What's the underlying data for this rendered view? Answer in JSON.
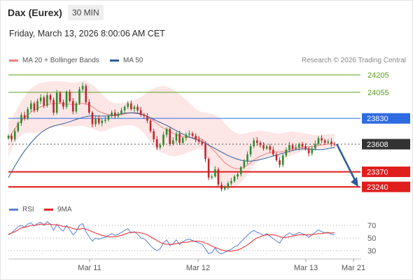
{
  "header": {
    "instrument": "Dax (Eurex)",
    "timeframe": "30 MIN",
    "datetime": "Friday, March 13, 2026 8:00:06 AM CET"
  },
  "legend": {
    "ma20": {
      "label": "MA 20 + Bollinger Bands",
      "color": "#f08080"
    },
    "ma50": {
      "label": "MA 50",
      "color": "#2e5c99"
    },
    "rsi": {
      "label": "RSI",
      "color": "#5b7fd6"
    },
    "rsi_ma": {
      "label": "9MA",
      "color": "#e8262b"
    },
    "credit": "Research © 2026 Trading Central"
  },
  "chart_data": {
    "type": "candlestick",
    "price_axis": {
      "min": 23150,
      "max": 24300
    },
    "levels": [
      {
        "value": 24205,
        "label": "24205",
        "kind": "target",
        "color": "#5aa01e"
      },
      {
        "value": 24055,
        "label": "24055",
        "kind": "target",
        "color": "#5aa01e"
      },
      {
        "value": 23830,
        "label": "23830",
        "kind": "pivot",
        "color": "#2f6be0"
      },
      {
        "value": 23608,
        "label": "23608",
        "kind": "last",
        "color": "#333333"
      },
      {
        "value": 23370,
        "label": "23370",
        "kind": "support",
        "color": "#e01e1e"
      },
      {
        "value": 23240,
        "label": "23240",
        "kind": "support",
        "color": "#e01e1e"
      }
    ],
    "forecast": {
      "from": 23610,
      "to": 23240,
      "color": "#2e5c99"
    },
    "x_labels": [
      "Mar 11",
      "Mar 12",
      "Mar 13",
      "Mar 21"
    ],
    "closes": [
      23680,
      23650,
      23720,
      23790,
      23860,
      23830,
      23910,
      23960,
      23900,
      23980,
      24010,
      23940,
      24030,
      23990,
      23880,
      24050,
      23970,
      23930,
      24060,
      23980,
      23890,
      23960,
      24080,
      24110,
      23970,
      23880,
      23780,
      23830,
      23790,
      23810,
      23820,
      23850,
      23880,
      23850,
      23870,
      23900,
      23930,
      23960,
      23910,
      23930,
      23900,
      23860,
      23850,
      23810,
      23720,
      23650,
      23580,
      23600,
      23690,
      23740,
      23610,
      23640,
      23700,
      23620,
      23660,
      23690,
      23700,
      23680,
      23650,
      23630,
      23610,
      23480,
      23320,
      23330,
      23390,
      23260,
      23220,
      23240,
      23270,
      23290,
      23330,
      23350,
      23410,
      23460,
      23520,
      23590,
      23640,
      23620,
      23600,
      23570,
      23590,
      23560,
      23520,
      23470,
      23430,
      23510,
      23560,
      23600,
      23570,
      23580,
      23610,
      23590,
      23570,
      23530,
      23570,
      23610,
      23660,
      23640,
      23620,
      23630,
      23610,
      23608
    ],
    "ma20": [
      23650,
      23700,
      23740,
      23780,
      23810,
      23835,
      23860,
      23885,
      23900,
      23915,
      23930,
      23940,
      23950,
      23955,
      23958,
      23960,
      23958,
      23955,
      23953,
      23952,
      23950,
      23950,
      23955,
      23960,
      23955,
      23945,
      23930,
      23910,
      23890,
      23880,
      23870,
      23862,
      23858,
      23856,
      23858,
      23862,
      23868,
      23875,
      23880,
      23880,
      23878,
      23872,
      23862,
      23848,
      23830,
      23808,
      23785,
      23765,
      23748,
      23735,
      23715,
      23700,
      23690,
      23680,
      23672,
      23668,
      23665,
      23662,
      23662,
      23660,
      23650,
      23628,
      23600,
      23570,
      23542,
      23508,
      23478,
      23450,
      23428,
      23410,
      23400,
      23395,
      23398,
      23410,
      23428,
      23450,
      23472,
      23490,
      23505,
      23516,
      23528,
      23535,
      23540,
      23542,
      23540,
      23545,
      23552,
      23560,
      23568,
      23572,
      23578,
      23582,
      23585,
      23585,
      23588,
      23592,
      23598,
      23602,
      23605,
      23610,
      23612,
      23612
    ],
    "bb_upper": [
      23800,
      23830,
      23880,
      23930,
      23980,
      24020,
      24060,
      24090,
      24110,
      24125,
      24135,
      24140,
      24145,
      24150,
      24152,
      24152,
      24150,
      24148,
      24145,
      24140,
      24138,
      24138,
      24145,
      24155,
      24150,
      24140,
      24120,
      24095,
      24070,
      24040,
      24010,
      23985,
      23970,
      23962,
      23960,
      23962,
      23968,
      23975,
      23982,
      23990,
      24000,
      24015,
      24035,
      24055,
      24075,
      24090,
      24100,
      24108,
      24110,
      24105,
      24095,
      24080,
      24060,
      24040,
      24015,
      23990,
      23965,
      23940,
      23915,
      23895,
      23885,
      23880,
      23876,
      23870,
      23860,
      23845,
      23820,
      23790,
      23760,
      23730,
      23710,
      23700,
      23695,
      23698,
      23705,
      23712,
      23718,
      23722,
      23725,
      23722,
      23718,
      23712,
      23705,
      23700,
      23700,
      23705,
      23710,
      23715,
      23718,
      23715,
      23710,
      23705,
      23700,
      23695,
      23690,
      23688,
      23688,
      23690,
      23692,
      23695,
      23697,
      23698
    ],
    "bb_lower": [
      23500,
      23560,
      23620,
      23660,
      23690,
      23700,
      23705,
      23710,
      23700,
      23705,
      23715,
      23725,
      23738,
      23745,
      23755,
      23765,
      23765,
      23760,
      23760,
      23760,
      23760,
      23760,
      23765,
      23765,
      23760,
      23750,
      23740,
      23730,
      23720,
      23720,
      23725,
      23735,
      23745,
      23755,
      23760,
      23765,
      23770,
      23770,
      23770,
      23765,
      23750,
      23730,
      23700,
      23665,
      23625,
      23585,
      23560,
      23540,
      23530,
      23520,
      23510,
      23505,
      23505,
      23510,
      23520,
      23530,
      23540,
      23550,
      23560,
      23565,
      23560,
      23515,
      23460,
      23400,
      23340,
      23285,
      23250,
      23235,
      23225,
      23225,
      23235,
      23255,
      23280,
      23310,
      23345,
      23380,
      23420,
      23450,
      23475,
      23490,
      23500,
      23505,
      23505,
      23500,
      23490,
      23490,
      23495,
      23505,
      23515,
      23525,
      23535,
      23545,
      23552,
      23555,
      23560,
      23565,
      23570,
      23572,
      23574,
      23576,
      23578,
      23580
    ],
    "ma50": [
      23320,
      23370,
      23420,
      23465,
      23510,
      23550,
      23585,
      23620,
      23650,
      23680,
      23705,
      23725,
      23742,
      23755,
      23765,
      23772,
      23778,
      23785,
      23793,
      23802,
      23812,
      23822,
      23830,
      23838,
      23845,
      23850,
      23852,
      23852,
      23850,
      23850,
      23850,
      23852,
      23856,
      23860,
      23865,
      23870,
      23875,
      23878,
      23878,
      23876,
      23872,
      23866,
      23858,
      23848,
      23836,
      23822,
      23808,
      23795,
      23782,
      23770,
      23755,
      23740,
      23725,
      23710,
      23695,
      23682,
      23670,
      23660,
      23650,
      23640,
      23630,
      23615,
      23600,
      23585,
      23570,
      23555,
      23540,
      23525,
      23510,
      23498,
      23488,
      23478,
      23470,
      23465,
      23462,
      23462,
      23465,
      23470,
      23476,
      23482,
      23490,
      23498,
      23506,
      23514,
      23522,
      23530,
      23538,
      23546,
      23554,
      23560,
      23564,
      23567,
      23568,
      23566,
      23564,
      23562,
      23560,
      23562,
      23565,
      23570,
      23575,
      23580
    ],
    "rsi_axis": {
      "min": 20,
      "max": 80,
      "ticks": [
        70,
        50,
        30
      ]
    },
    "rsi": [
      55,
      58,
      63,
      68,
      70,
      67,
      72,
      74,
      69,
      73,
      75,
      70,
      76,
      72,
      62,
      72,
      65,
      61,
      70,
      63,
      55,
      60,
      70,
      73,
      60,
      52,
      45,
      50,
      48,
      50,
      51,
      54,
      57,
      54,
      56,
      59,
      62,
      65,
      58,
      60,
      56,
      50,
      49,
      44,
      38,
      33,
      30,
      33,
      42,
      47,
      38,
      41,
      47,
      40,
      44,
      47,
      48,
      46,
      44,
      42,
      40,
      33,
      25,
      27,
      34,
      27,
      25,
      27,
      30,
      32,
      36,
      38,
      44,
      49,
      54,
      59,
      62,
      59,
      57,
      54,
      57,
      53,
      49,
      45,
      42,
      50,
      55,
      58,
      55,
      56,
      59,
      57,
      55,
      51,
      55,
      59,
      63,
      60,
      58,
      59,
      56,
      55
    ],
    "rsi_ma": [
      56,
      58,
      60,
      63,
      66,
      67,
      68,
      70,
      70,
      71,
      72,
      72,
      72,
      72,
      71,
      71,
      70,
      68,
      68,
      67,
      65,
      64,
      64,
      65,
      64,
      62,
      60,
      58,
      56,
      54,
      53,
      52,
      52,
      52,
      53,
      54,
      56,
      58,
      59,
      59,
      59,
      58,
      57,
      55,
      52,
      49,
      46,
      43,
      41,
      40,
      40,
      40,
      41,
      42,
      43,
      43,
      44,
      45,
      45,
      45,
      44,
      42,
      40,
      37,
      35,
      33,
      31,
      30,
      29,
      29,
      30,
      31,
      33,
      36,
      39,
      43,
      47,
      50,
      52,
      54,
      55,
      55,
      55,
      54,
      52,
      51,
      51,
      52,
      53,
      54,
      55,
      55,
      55,
      55,
      55,
      56,
      57,
      57,
      58,
      58,
      58,
      58
    ]
  }
}
